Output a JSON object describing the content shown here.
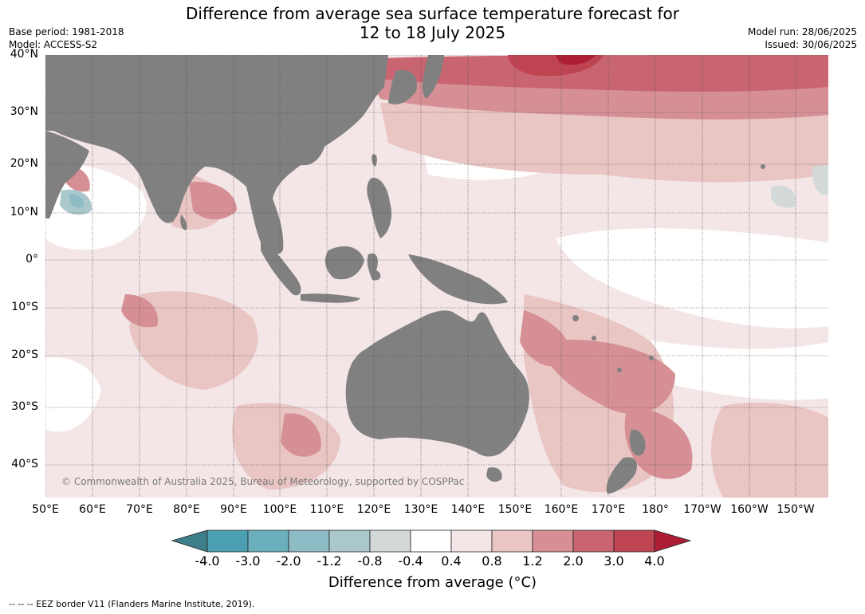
{
  "header": {
    "title_line1": "Difference from average sea surface temperature forecast for",
    "title_line2": "12 to 18 July 2025",
    "base_period": "Base period: 1981-2018",
    "model": "Model: ACCESS-S2",
    "model_run": "Model run: 28/06/2025",
    "issued": "Issued: 30/06/2025"
  },
  "map": {
    "lat_labels": [
      "40°N",
      "30°N",
      "20°N",
      "10°N",
      "0°",
      "10°S",
      "20°S",
      "30°S",
      "40°S"
    ],
    "lon_labels": [
      "50°E",
      "60°E",
      "70°E",
      "80°E",
      "90°E",
      "100°E",
      "110°E",
      "120°E",
      "130°E",
      "140°E",
      "150°E",
      "160°E",
      "170°E",
      "180°",
      "170°W",
      "160°W",
      "150°W"
    ],
    "copyright": "© Commonwealth of Australia 2025, Bureau of Meteorology, supported by COSPPac",
    "colors": {
      "land": "#808080",
      "grid": "#555555"
    }
  },
  "colorbar": {
    "ticks": [
      "-4.0",
      "-3.0",
      "-2.0",
      "-1.2",
      "-0.8",
      "-0.4",
      "0.4",
      "0.8",
      "1.2",
      "2.0",
      "3.0",
      "4.0"
    ],
    "colors": [
      "#3e7e89",
      "#4aa0b0",
      "#6aafbb",
      "#8ebcc6",
      "#aac8cc",
      "#d3d8d9",
      "#ffffff",
      "#f4e6e6",
      "#e9c5c4",
      "#d58f95",
      "#c96570",
      "#bf4452",
      "#ad1e35"
    ],
    "label": "Difference from average (°C)"
  },
  "footer": "--  --  -- EEZ border V11 (Flanders Marine Institute, 2019)."
}
